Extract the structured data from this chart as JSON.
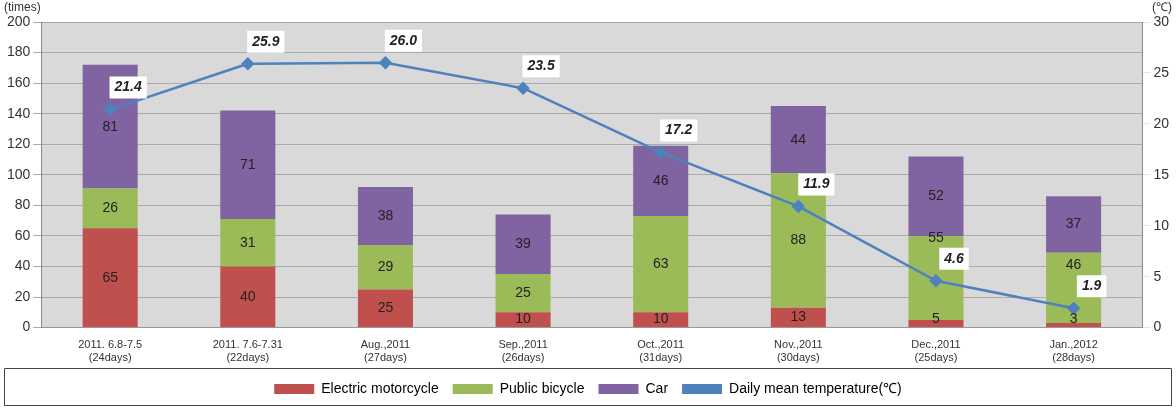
{
  "chart_data": {
    "type": "bar",
    "stacked": true,
    "ylabel": "(times)",
    "y2label": "(℃)",
    "categories": [
      "2011. 6.8-7.5\n(24days)",
      "2011. 7.6-7.31\n(22days)",
      "Aug.,2011\n(27days)",
      "Sep.,2011\n(26days)",
      "Oct.,2011\n(31days)",
      "Nov.,2011\n(30days)",
      "Dec.,2011\n(25days)",
      "Jan.,2012\n(28days)"
    ],
    "series": [
      {
        "name": "Electric motorcycle",
        "color": "#c0504d",
        "values": [
          65,
          40,
          25,
          10,
          10,
          13,
          5,
          3
        ]
      },
      {
        "name": "Public bicycle",
        "color": "#9bbb59",
        "values": [
          26,
          31,
          29,
          25,
          63,
          88,
          55,
          46
        ]
      },
      {
        "name": "Car",
        "color": "#8064a2",
        "values": [
          81,
          71,
          38,
          39,
          46,
          44,
          52,
          37
        ]
      },
      {
        "name": "Daily mean temperature(℃)",
        "type": "line",
        "axis": "y2",
        "color": "#4f81bd",
        "marker": "diamond",
        "values": [
          21.4,
          25.9,
          26.0,
          23.5,
          17.2,
          11.9,
          4.6,
          1.9
        ],
        "value_labels": [
          "21.4",
          "25.9",
          "26.0",
          "23.5",
          "17.2",
          "11.9",
          "4.6",
          "1.9"
        ]
      }
    ],
    "ylim": [
      0,
      200
    ],
    "yticks": [
      0,
      20,
      40,
      60,
      80,
      100,
      120,
      140,
      160,
      180,
      200
    ],
    "y2lim": [
      0,
      30
    ],
    "y2ticks": [
      0,
      5,
      10,
      15,
      20,
      25,
      30
    ],
    "grid": "y",
    "legend": "bottom",
    "data_labels": true
  }
}
